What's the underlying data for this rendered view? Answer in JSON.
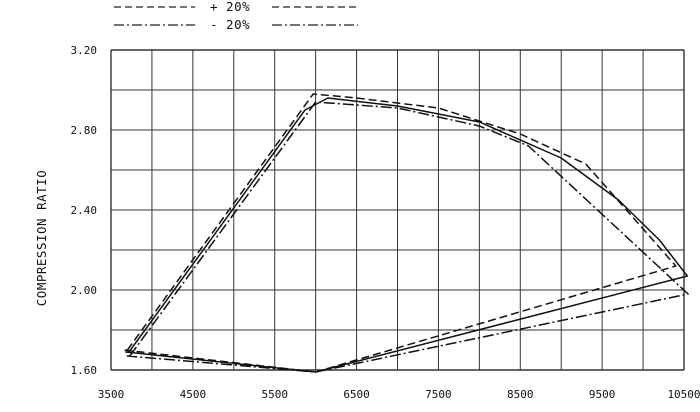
{
  "chart_data": {
    "type": "line",
    "title": "",
    "xlabel": "",
    "ylabel": "COMPRESSION RATIO",
    "xlim": [
      3500,
      10500
    ],
    "ylim": [
      1.6,
      3.2
    ],
    "x_ticks": [
      "3500",
      "4500",
      "5500",
      "6500",
      "7500",
      "8500",
      "9500",
      "10500"
    ],
    "y_ticks": [
      "1.60",
      "2.00",
      "2.40",
      "2.80",
      "3.20"
    ],
    "grid": true,
    "legend_position": "top-left",
    "legend": [
      {
        "label": "+ 20%",
        "style": "dashed"
      },
      {
        "label": "- 20%",
        "style": "dash-dot"
      }
    ],
    "series": [
      {
        "style": "solid",
        "x": [
          3720,
          5870,
          6150,
          7000,
          8000,
          9000,
          9700,
          10200,
          10540,
          10540,
          6000,
          3680,
          3720
        ],
        "y": [
          1.69,
          2.9,
          2.96,
          2.92,
          2.84,
          2.66,
          2.45,
          2.25,
          2.07,
          2.07,
          1.59,
          1.69,
          1.69
        ]
      },
      {
        "name": "+ 20%",
        "style": "dashed",
        "x": [
          3700,
          5970,
          6500,
          7500,
          8500,
          9300,
          10400,
          10400,
          6000,
          3650,
          3700
        ],
        "y": [
          1.7,
          2.98,
          2.96,
          2.91,
          2.78,
          2.63,
          2.12,
          2.12,
          1.59,
          1.7,
          1.7
        ]
      },
      {
        "name": "- 20%",
        "style": "dash-dot",
        "x": [
          3730,
          5840,
          6000,
          7000,
          8000,
          8600,
          10550,
          10550,
          6000,
          3700,
          3730
        ],
        "y": [
          1.67,
          2.85,
          2.94,
          2.91,
          2.82,
          2.72,
          1.98,
          1.98,
          1.59,
          1.67,
          1.67
        ]
      }
    ]
  }
}
